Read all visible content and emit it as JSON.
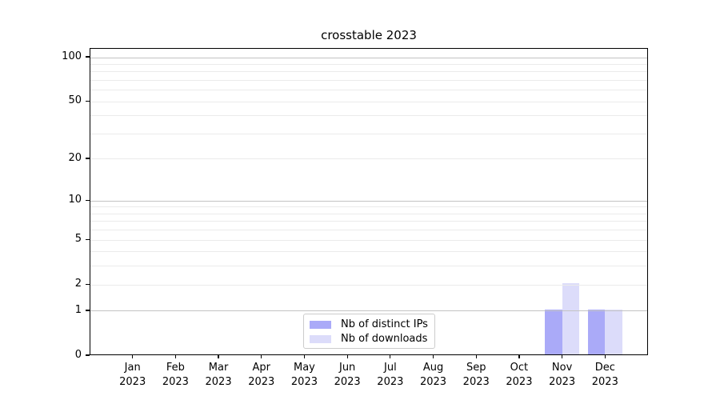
{
  "chart_data": {
    "type": "bar",
    "title": "crosstable 2023",
    "categories": [
      "Jan 2023",
      "Feb 2023",
      "Mar 2023",
      "Apr 2023",
      "May 2023",
      "Jun 2023",
      "Jul 2023",
      "Aug 2023",
      "Sep 2023",
      "Oct 2023",
      "Nov 2023",
      "Dec 2023"
    ],
    "x_tick_month": [
      "Jan",
      "Feb",
      "Mar",
      "Apr",
      "May",
      "Jun",
      "Jul",
      "Aug",
      "Sep",
      "Oct",
      "Nov",
      "Dec"
    ],
    "x_tick_year": "2023",
    "series": [
      {
        "name": "Nb of distinct IPs",
        "color": "#aaaaf8",
        "values": [
          0,
          0,
          0,
          0,
          0,
          0,
          0,
          0,
          0,
          0,
          1,
          1
        ]
      },
      {
        "name": "Nb of downloads",
        "color": "#dcdcfa",
        "values": [
          0,
          0,
          0,
          0,
          0,
          0,
          0,
          0,
          0,
          0,
          2,
          1
        ]
      }
    ],
    "xlabel": "",
    "ylabel": "",
    "y_axis": {
      "scale": "log1p",
      "tick_labels": [
        "100",
        "50",
        "20",
        "10",
        "5",
        "2",
        "1",
        "0"
      ],
      "tick_values": [
        100,
        50,
        20,
        10,
        5,
        2,
        1,
        0
      ],
      "major_gridlines": [
        1,
        10,
        100
      ],
      "minor_gridlines": [
        2,
        3,
        4,
        5,
        6,
        7,
        8,
        9,
        20,
        30,
        40,
        50,
        60,
        70,
        80,
        90
      ],
      "range_top_value": 115
    },
    "legend": {
      "position": "lower center-left",
      "entries": [
        "Nb of distinct IPs",
        "Nb of downloads"
      ]
    },
    "grid": true
  },
  "style": {
    "background": "#ffffff",
    "axis_color": "#000000",
    "text_color": "#000000",
    "major_grid_color": "#c3c3c3",
    "minor_grid_color": "#ebebeb",
    "legend_border_color": "#cccccc",
    "bar_color_distinct_ips": "#aaaaf8",
    "bar_color_downloads": "#dcdcfa"
  }
}
